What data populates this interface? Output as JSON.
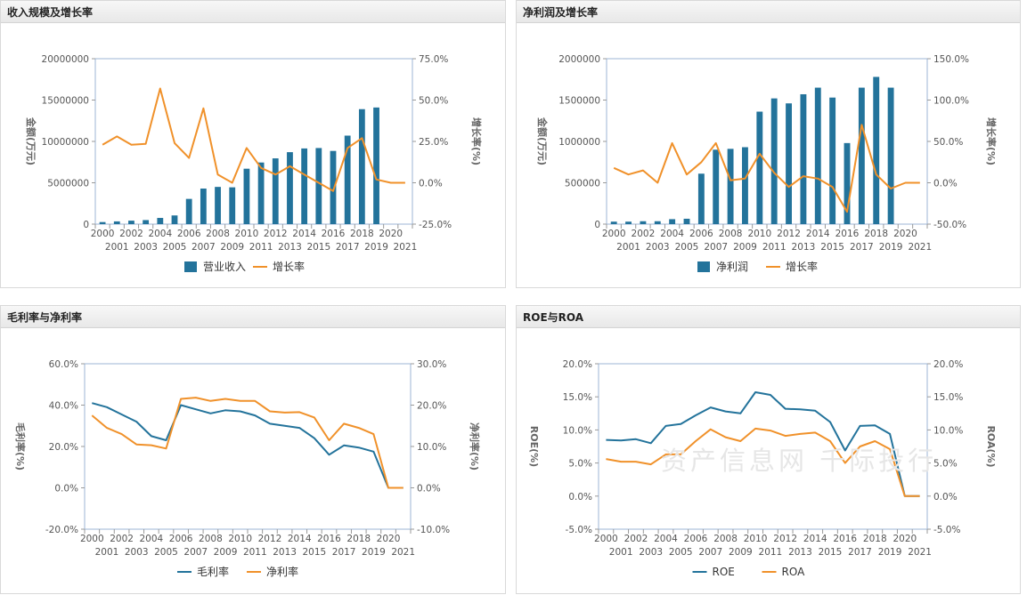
{
  "watermark": "资产信息网 千际投行",
  "colors": {
    "bar": "#23739b",
    "line_orange": "#f0912a",
    "line_blue": "#23739b",
    "axis": "#999999",
    "grid": "#e8e8e8",
    "plot_border": "#9db5d6"
  },
  "chart_data": [
    {
      "id": "revenue",
      "title": "收入规模及增长率",
      "type": "bar+line",
      "categories": [
        "2000",
        "2001",
        "2002",
        "2003",
        "2004",
        "2005",
        "2006",
        "2007",
        "2008",
        "2009",
        "2010",
        "2011",
        "2012",
        "2013",
        "2014",
        "2015",
        "2016",
        "2017",
        "2018",
        "2019",
        "2020",
        "2021"
      ],
      "left_axis": {
        "label": "金额(万元)",
        "min": 0,
        "max": 20000000,
        "ticks": [
          0,
          5000000,
          10000000,
          15000000,
          20000000
        ],
        "tick_labels": [
          "0",
          "5000000",
          "10000000",
          "15000000",
          "20000000"
        ]
      },
      "right_axis": {
        "label": "增长率(%)",
        "min": -25,
        "max": 75,
        "ticks": [
          -25,
          0,
          25,
          50,
          75
        ],
        "tick_labels": [
          "-25.0%",
          "0.0%",
          "25.0%",
          "50.0%",
          "75.0%"
        ]
      },
      "series": [
        {
          "name": "营业收入",
          "kind": "bar",
          "axis": "left",
          "values": [
            250000,
            330000,
            420000,
            490000,
            750000,
            1050000,
            3050000,
            4300000,
            4500000,
            4450000,
            6700000,
            7450000,
            7950000,
            8700000,
            9150000,
            9200000,
            8850000,
            10700000,
            13900000,
            14100000,
            null,
            null
          ]
        },
        {
          "name": "增长率",
          "kind": "line",
          "axis": "right",
          "values": [
            23,
            28,
            23,
            23.5,
            57,
            24,
            15,
            45,
            5,
            0,
            21,
            9,
            5,
            10,
            5,
            0,
            -5,
            21,
            27,
            2,
            0,
            0
          ]
        }
      ]
    },
    {
      "id": "profit",
      "title": "净利润及增长率",
      "type": "bar+line",
      "categories": [
        "2000",
        "2001",
        "2002",
        "2003",
        "2004",
        "2005",
        "2006",
        "2007",
        "2008",
        "2009",
        "2010",
        "2011",
        "2012",
        "2013",
        "2014",
        "2015",
        "2016",
        "2017",
        "2018",
        "2019",
        "2020",
        "2021"
      ],
      "left_axis": {
        "label": "金额(万元)",
        "min": 0,
        "max": 2000000,
        "ticks": [
          0,
          500000,
          1000000,
          1500000,
          2000000
        ],
        "tick_labels": [
          "0",
          "500000",
          "1000000",
          "1500000",
          "2000000"
        ]
      },
      "right_axis": {
        "label": "增长率(%)",
        "min": -50,
        "max": 150,
        "ticks": [
          -50,
          0,
          50,
          100,
          150
        ],
        "tick_labels": [
          "-50.0%",
          "0.0%",
          "50.0%",
          "100.0%",
          "150.0%"
        ]
      },
      "series": [
        {
          "name": "净利润",
          "kind": "bar",
          "axis": "left",
          "values": [
            30000,
            30000,
            35000,
            35000,
            60000,
            65000,
            610000,
            900000,
            910000,
            930000,
            1360000,
            1520000,
            1460000,
            1570000,
            1650000,
            1530000,
            980000,
            1650000,
            1780000,
            1650000,
            null,
            null
          ]
        },
        {
          "name": "增长率",
          "kind": "line",
          "axis": "right",
          "values": [
            18,
            10,
            15,
            0,
            48,
            10,
            25,
            48,
            3,
            5,
            35,
            12,
            -5,
            8,
            5,
            -5,
            -35,
            70,
            10,
            -7,
            0,
            0
          ]
        }
      ]
    },
    {
      "id": "margin",
      "title": "毛利率与净利率",
      "type": "line",
      "categories": [
        "2000",
        "2001",
        "2002",
        "2003",
        "2004",
        "2005",
        "2006",
        "2007",
        "2008",
        "2009",
        "2010",
        "2011",
        "2012",
        "2013",
        "2014",
        "2015",
        "2016",
        "2017",
        "2018",
        "2019",
        "2020",
        "2021"
      ],
      "left_axis": {
        "label": "毛利率(%)",
        "min": -20,
        "max": 60,
        "ticks": [
          -20,
          0,
          20,
          40,
          60
        ],
        "tick_labels": [
          "-20.0%",
          "0.0%",
          "20.0%",
          "40.0%",
          "60.0%"
        ]
      },
      "right_axis": {
        "label": "净利率(%)",
        "min": -10,
        "max": 30,
        "ticks": [
          -10,
          0,
          10,
          20,
          30
        ],
        "tick_labels": [
          "-10.0%",
          "0.0%",
          "10.0%",
          "20.0%",
          "30.0%"
        ]
      },
      "series": [
        {
          "name": "毛利率",
          "kind": "line",
          "axis": "left",
          "color": "blue",
          "values": [
            41,
            39,
            35.5,
            32,
            25,
            23,
            40,
            38,
            36,
            37.5,
            37,
            35,
            31,
            30,
            29,
            24,
            16,
            20.5,
            19.5,
            17.5,
            0,
            0
          ]
        },
        {
          "name": "净利率",
          "kind": "line",
          "axis": "right",
          "color": "orange",
          "values": [
            17.5,
            14.5,
            13,
            10.5,
            10.3,
            9.5,
            21.5,
            21.8,
            21,
            21.5,
            21,
            21,
            18.5,
            18.2,
            18.3,
            17,
            11.5,
            15.5,
            14.5,
            13,
            0,
            0
          ]
        }
      ]
    },
    {
      "id": "roe",
      "title": "ROE与ROA",
      "type": "line",
      "categories": [
        "2000",
        "2001",
        "2002",
        "2003",
        "2004",
        "2005",
        "2006",
        "2007",
        "2008",
        "2009",
        "2010",
        "2011",
        "2012",
        "2013",
        "2014",
        "2015",
        "2016",
        "2017",
        "2018",
        "2019",
        "2020",
        "2021"
      ],
      "left_axis": {
        "label": "ROE(%)",
        "min": -5,
        "max": 20,
        "ticks": [
          -5,
          0,
          5,
          10,
          15,
          20
        ],
        "tick_labels": [
          "-5.0%",
          "0.0%",
          "5.0%",
          "10.0%",
          "15.0%",
          "20.0%"
        ]
      },
      "right_axis": {
        "label": "ROA(%)",
        "min": -5,
        "max": 20,
        "ticks": [
          -5,
          0,
          5,
          10,
          15,
          20
        ],
        "tick_labels": [
          "-5.0%",
          "0.0%",
          "5.0%",
          "10.0%",
          "15.0%",
          "20.0%"
        ]
      },
      "series": [
        {
          "name": "ROE",
          "kind": "line",
          "axis": "left",
          "color": "blue",
          "values": [
            8.5,
            8.4,
            8.6,
            8.0,
            10.6,
            10.9,
            12.2,
            13.4,
            12.8,
            12.5,
            15.7,
            15.3,
            13.2,
            13.1,
            12.9,
            11.2,
            6.9,
            10.6,
            10.7,
            9.4,
            0,
            0
          ]
        },
        {
          "name": "ROA",
          "kind": "line",
          "axis": "right",
          "color": "orange",
          "values": [
            5.6,
            5.2,
            5.2,
            4.8,
            6.3,
            6.3,
            8.3,
            10.1,
            8.9,
            8.3,
            10.2,
            9.9,
            9.1,
            9.4,
            9.6,
            8.3,
            5.0,
            7.5,
            8.3,
            7.1,
            0,
            0
          ]
        }
      ]
    }
  ]
}
